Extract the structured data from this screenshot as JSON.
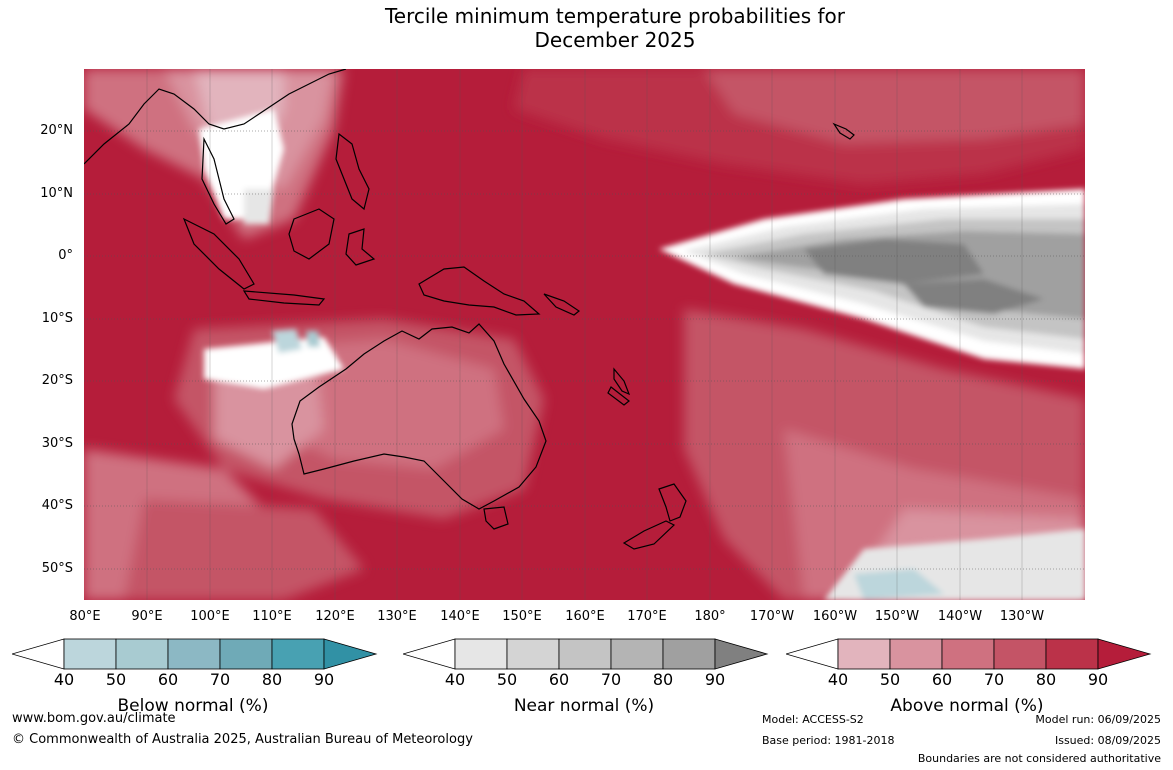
{
  "title": {
    "line1": "Tercile minimum temperature probabilities for",
    "line2": "December 2025"
  },
  "map": {
    "lat_labels": [
      "20°N",
      "10°N",
      "0°",
      "10°S",
      "20°S",
      "30°S",
      "40°S",
      "50°S"
    ],
    "lon_labels": [
      "80°E",
      "90°E",
      "100°E",
      "110°E",
      "120°E",
      "130°E",
      "140°E",
      "150°E",
      "160°E",
      "170°E",
      "180°",
      "170°W",
      "160°W",
      "150°W",
      "140°W",
      "130°W"
    ],
    "background_color": "#b51d3a",
    "land_outline_color": "#000000"
  },
  "colorbars": [
    {
      "name": "Below normal (%)",
      "ticks": [
        "40",
        "50",
        "60",
        "70",
        "80",
        "90"
      ],
      "colors": [
        "#ffffff",
        "#bcd6dc",
        "#a8cbd1",
        "#8cb8c4",
        "#6faab7",
        "#48a1b2",
        "#3191a5"
      ]
    },
    {
      "name": "Near normal (%)",
      "ticks": [
        "40",
        "50",
        "60",
        "70",
        "80",
        "90"
      ],
      "colors": [
        "#ffffff",
        "#e6e6e6",
        "#d4d4d4",
        "#c4c4c4",
        "#b4b4b4",
        "#a0a0a0",
        "#808080"
      ]
    },
    {
      "name": "Above normal (%)",
      "ticks": [
        "40",
        "50",
        "60",
        "70",
        "80",
        "90"
      ],
      "colors": [
        "#ffffff",
        "#e2b4bd",
        "#d9939f",
        "#cf7180",
        "#c45466",
        "#bb3249",
        "#b51d3a"
      ]
    }
  ],
  "footer": {
    "website": "www.bom.gov.au/climate",
    "copyright": "© Commonwealth of Australia 2025, Australian Bureau of Meteorology",
    "model": "Model: ACCESS-S2",
    "base_period": "Base period: 1981-2018",
    "model_run": "Model run: 06/09/2025",
    "issued": "Issued: 08/09/2025",
    "boundaries": "Boundaries are not considered authoritative"
  }
}
